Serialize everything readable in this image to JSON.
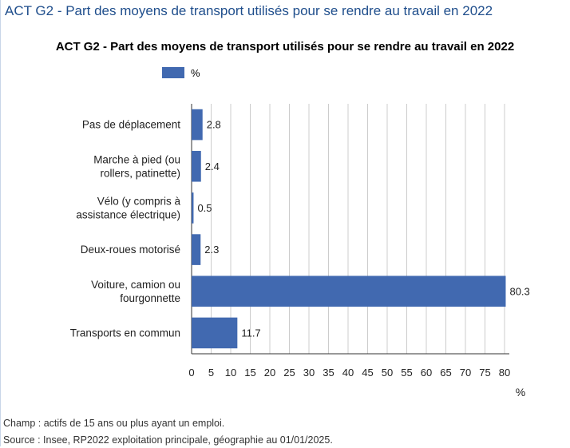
{
  "page": {
    "title": "ACT G2 - Part des moyens de transport utilisés pour se rendre au travail en 2022"
  },
  "colors": {
    "bar": "#4169b0",
    "grid": "#cccccc",
    "axis": "#333333",
    "title": "#1f4e8c"
  },
  "chart_data": {
    "type": "bar",
    "orientation": "horizontal",
    "title": "ACT G2 - Part des moyens de transport utilisés pour se rendre au travail en 2022",
    "xlabel": "%",
    "categories": [
      [
        "Pas de déplacement"
      ],
      [
        "Marche à pied (ou",
        "rollers, patinette)"
      ],
      [
        "Vélo (y compris à",
        "assistance électrique)"
      ],
      [
        "Deux-roues motorisé"
      ],
      [
        "Voiture, camion ou",
        "fourgonnette"
      ],
      [
        "Transports en commun"
      ]
    ],
    "series": [
      {
        "name": "%",
        "values": [
          2.8,
          2.4,
          0.5,
          2.3,
          80.3,
          11.7
        ]
      }
    ],
    "value_labels": [
      "2.8",
      "2.4",
      "0.5",
      "2.3",
      "80.3",
      "11.7"
    ],
    "xlim": [
      0,
      80
    ],
    "xticks": [
      0,
      5,
      10,
      15,
      20,
      25,
      30,
      35,
      40,
      45,
      50,
      55,
      60,
      65,
      70,
      75,
      80
    ],
    "grid": true,
    "legend_position": "top-left"
  },
  "footer": {
    "note": "Champ : actifs de 15 ans ou plus ayant un emploi.",
    "source": "Source : Insee, RP2022 exploitation principale, géographie au 01/01/2025."
  }
}
